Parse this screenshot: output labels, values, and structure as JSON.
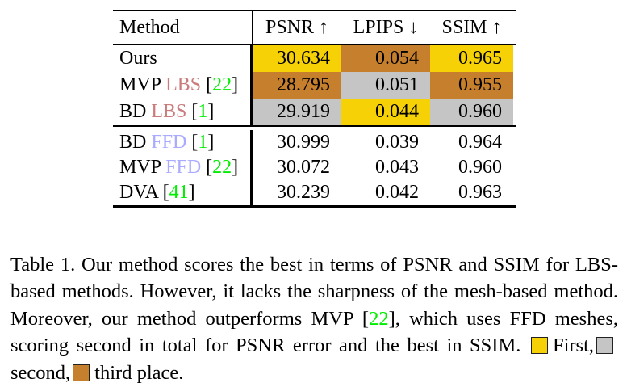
{
  "table": {
    "header": {
      "method": "Method",
      "cols": [
        "PSNR ↑",
        "LPIPS ↓",
        "SSIM ↑"
      ]
    },
    "rows": [
      {
        "method": {
          "name": "Ours"
        },
        "values": [
          {
            "v": "30.634",
            "bg": "#F5D106"
          },
          {
            "v": "0.054",
            "bg": "#C67F2D"
          },
          {
            "v": "0.965",
            "bg": "#F5D106"
          }
        ]
      },
      {
        "method": {
          "name": "MVP ",
          "variant": "LBS",
          "variant_color": "#CA7C7C",
          "cite_open": " [",
          "cite_num": "22",
          "cite_close": "]",
          "cite_color": "#00EE00"
        },
        "values": [
          {
            "v": "28.795",
            "bg": "#C67F2D"
          },
          {
            "v": "0.051",
            "bg": "#C5C5C5"
          },
          {
            "v": "0.955",
            "bg": "#C67F2D"
          }
        ]
      },
      {
        "method": {
          "name": "BD ",
          "variant": "LBS",
          "variant_color": "#CA7C7C",
          "cite_open": " [",
          "cite_num": "1",
          "cite_close": "]",
          "cite_color": "#00EE00"
        },
        "values": [
          {
            "v": "29.919",
            "bg": "#C5C5C5"
          },
          {
            "v": "0.044",
            "bg": "#F5D106"
          },
          {
            "v": "0.960",
            "bg": "#C5C5C5"
          }
        ]
      },
      {
        "method": {
          "name": "BD ",
          "variant": "FFD",
          "variant_color": "#AAAAFF",
          "cite_open": " [",
          "cite_num": "1",
          "cite_close": "]",
          "cite_color": "#00EE00"
        },
        "values": [
          {
            "v": "30.999"
          },
          {
            "v": "0.039"
          },
          {
            "v": "0.964"
          }
        ]
      },
      {
        "method": {
          "name": "MVP ",
          "variant": "FFD",
          "variant_color": "#AAAAFF",
          "cite_open": " [",
          "cite_num": "22",
          "cite_close": "]",
          "cite_color": "#00EE00"
        },
        "values": [
          {
            "v": "30.072"
          },
          {
            "v": "0.043"
          },
          {
            "v": "0.960"
          }
        ]
      },
      {
        "method": {
          "name": "DVA",
          "cite_open": " [",
          "cite_num": "41",
          "cite_close": "]",
          "cite_color": "#00EE00"
        },
        "values": [
          {
            "v": "30.239"
          },
          {
            "v": "0.042"
          },
          {
            "v": "0.963"
          }
        ]
      }
    ]
  },
  "caption": {
    "part1": "Table 1.  Our method scores the best in terms of PSNR and SSIM for LBS-based methods.  However, it lacks the sharpness of the mesh-based method.  Moreover, our method outperforms MVP ",
    "cite_open": "[",
    "cite_num": "22",
    "cite_close": "]",
    "cite_color": "#00EE00",
    "part2": ", which uses FFD meshes, scoring second in total for PSNR error and the best in SSIM. ",
    "legend": [
      {
        "label": "First,",
        "color": "#F5D106"
      },
      {
        "label": "second,",
        "color": "#C5C5C5"
      },
      {
        "label": "third place.",
        "color": "#C67F2D"
      }
    ]
  },
  "colors": {
    "first": "#F5D106",
    "second": "#C5C5C5",
    "third": "#C67F2D",
    "lbs": "#CA7C7C",
    "ffd": "#AAAAFF",
    "cite": "#00EE00"
  }
}
